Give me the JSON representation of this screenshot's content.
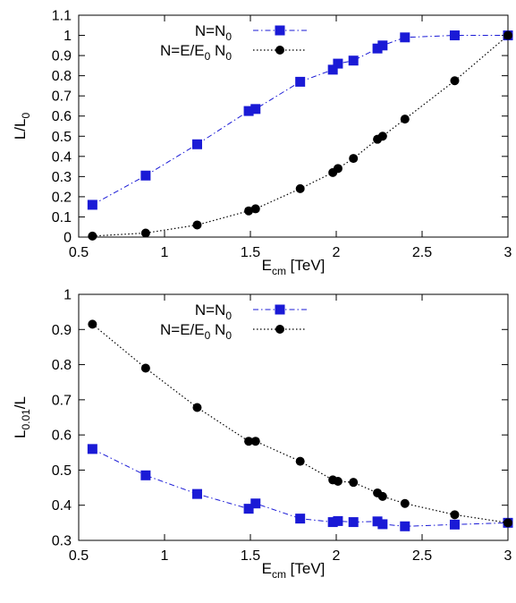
{
  "chart_data": [
    {
      "type": "line",
      "xlabel": "E",
      "xlabel_sub": "cm",
      "xlabel_unit": " [TeV]",
      "ylabel": "L/L",
      "ylabel_sub": "0",
      "xlim": [
        0.5,
        3
      ],
      "ylim": [
        0,
        1.1
      ],
      "xticks": [
        "0.5",
        "1",
        "1.5",
        "2",
        "2.5",
        "3"
      ],
      "yticks": [
        "0",
        "0.1",
        "0.2",
        "0.3",
        "0.4",
        "0.5",
        "0.6",
        "0.7",
        "0.8",
        "0.9",
        "1",
        "1.1"
      ],
      "grid": false,
      "legend_position": "top-right",
      "series": [
        {
          "name": "N=N",
          "name_sub": "0",
          "name_tail": "",
          "color": "#1a1ad6",
          "marker": "square",
          "line": "dash-dot",
          "x": [
            0.58,
            0.89,
            1.19,
            1.49,
            1.53,
            1.79,
            1.98,
            2.01,
            2.1,
            2.24,
            2.27,
            2.4,
            2.69,
            3.0
          ],
          "y": [
            0.16,
            0.305,
            0.46,
            0.625,
            0.635,
            0.77,
            0.83,
            0.86,
            0.875,
            0.935,
            0.95,
            0.99,
            1.0,
            1.0
          ]
        },
        {
          "name": "N=E/E",
          "name_sub": "0",
          "name_tail": " N",
          "name_tail_sub": "0",
          "color": "#000000",
          "marker": "circle",
          "line": "dotted",
          "x": [
            0.58,
            0.89,
            1.19,
            1.49,
            1.53,
            1.79,
            1.98,
            2.01,
            2.1,
            2.24,
            2.27,
            2.4,
            2.69,
            3.0
          ],
          "y": [
            0.005,
            0.02,
            0.06,
            0.13,
            0.14,
            0.24,
            0.32,
            0.34,
            0.39,
            0.485,
            0.5,
            0.585,
            0.775,
            1.0
          ]
        }
      ]
    },
    {
      "type": "line",
      "xlabel": "E",
      "xlabel_sub": "cm",
      "xlabel_unit": " [TeV]",
      "ylabel": "L",
      "ylabel_sub": "0.01",
      "ylabel_tail": "/L",
      "xlim": [
        0.5,
        3
      ],
      "ylim": [
        0.3,
        1
      ],
      "xticks": [
        "0.5",
        "1",
        "1.5",
        "2",
        "2.5",
        "3"
      ],
      "yticks": [
        "0.3",
        "0.4",
        "0.5",
        "0.6",
        "0.7",
        "0.8",
        "0.9",
        "1"
      ],
      "grid": false,
      "legend_position": "top-right",
      "series": [
        {
          "name": "N=N",
          "name_sub": "0",
          "name_tail": "",
          "color": "#1a1ad6",
          "marker": "square",
          "line": "dash-dot",
          "x": [
            0.58,
            0.89,
            1.19,
            1.49,
            1.53,
            1.79,
            1.98,
            2.01,
            2.1,
            2.24,
            2.27,
            2.4,
            2.69,
            3.0
          ],
          "y": [
            0.56,
            0.485,
            0.432,
            0.39,
            0.405,
            0.362,
            0.352,
            0.355,
            0.352,
            0.354,
            0.346,
            0.34,
            0.345,
            0.35
          ]
        },
        {
          "name": "N=E/E",
          "name_sub": "0",
          "name_tail": " N",
          "name_tail_sub": "0",
          "color": "#000000",
          "marker": "circle",
          "line": "dotted",
          "x": [
            0.58,
            0.89,
            1.19,
            1.49,
            1.53,
            1.79,
            1.98,
            2.01,
            2.1,
            2.24,
            2.27,
            2.4,
            2.69,
            3.0
          ],
          "y": [
            0.915,
            0.79,
            0.678,
            0.582,
            0.582,
            0.525,
            0.472,
            0.468,
            0.465,
            0.435,
            0.425,
            0.405,
            0.373,
            0.35
          ]
        }
      ]
    }
  ]
}
